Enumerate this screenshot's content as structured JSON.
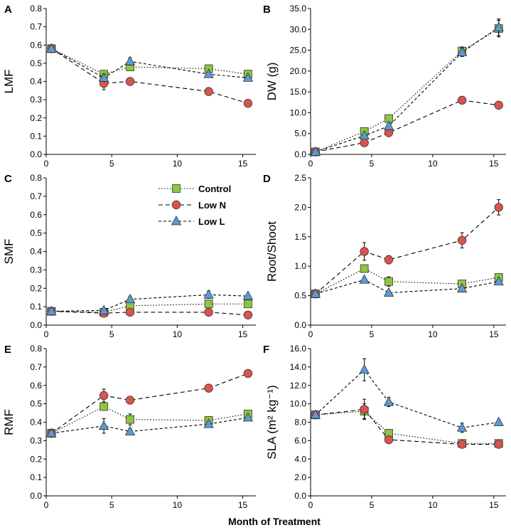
{
  "figure": {
    "xlabel": "Month of Treatment",
    "x_ticks": [
      "0",
      "5",
      "10",
      "15"
    ],
    "legend": [
      {
        "label": "Control",
        "series": "control"
      },
      {
        "label": "Low N",
        "series": "lown"
      },
      {
        "label": "Low L",
        "series": "lowl"
      }
    ]
  },
  "colors": {
    "control": "#8DC63F",
    "lown": "#D9534F",
    "lowl": "#5B9BD5",
    "outline": "#333333"
  },
  "chart_data": [
    {
      "type": "line",
      "panel": "A",
      "ylabel": "LMF",
      "x": [
        0.4,
        4.4,
        6.4,
        12.4,
        15.4
      ],
      "xlim": [
        0,
        16
      ],
      "ylim": [
        0,
        0.8
      ],
      "yticks": [
        "0.0",
        "0.1",
        "0.2",
        "0.3",
        "0.4",
        "0.5",
        "0.6",
        "0.7",
        "0.8"
      ],
      "series": [
        {
          "name": "Control",
          "key": "control",
          "values": [
            0.58,
            0.44,
            0.48,
            0.47,
            0.44
          ],
          "err": [
            0.01,
            0.01,
            0.02,
            0.01,
            0.01
          ]
        },
        {
          "name": "Low N",
          "key": "lown",
          "values": [
            0.58,
            0.39,
            0.4,
            0.345,
            0.28
          ],
          "err": [
            0.02,
            0.035,
            0.01,
            0.02,
            0.01
          ]
        },
        {
          "name": "Low L",
          "key": "lowl",
          "values": [
            0.58,
            0.42,
            0.51,
            0.44,
            0.42
          ],
          "err": [
            0.01,
            0.02,
            0.02,
            0.01,
            0.01
          ]
        }
      ]
    },
    {
      "type": "line",
      "panel": "B",
      "ylabel": "DW (g)",
      "x": [
        0.4,
        4.4,
        6.4,
        12.4,
        15.4
      ],
      "xlim": [
        0,
        16
      ],
      "ylim": [
        0,
        35
      ],
      "yticks": [
        "0.0",
        "5.0",
        "10.0",
        "15.0",
        "20.0",
        "25.0",
        "30.0",
        "35.0"
      ],
      "series": [
        {
          "name": "Control",
          "key": "control",
          "values": [
            0.6,
            5.5,
            8.6,
            24.8,
            30.2
          ],
          "err": [
            0.1,
            0.5,
            0.5,
            1.0,
            2.0
          ]
        },
        {
          "name": "Low N",
          "key": "lown",
          "values": [
            0.6,
            2.8,
            5.2,
            13.0,
            11.8
          ],
          "err": [
            0.1,
            0.3,
            0.4,
            0.5,
            0.5
          ]
        },
        {
          "name": "Low L",
          "key": "lowl",
          "values": [
            0.6,
            4.5,
            6.8,
            24.5,
            30.5
          ],
          "err": [
            0.1,
            0.4,
            0.5,
            1.0,
            2.0
          ]
        }
      ]
    },
    {
      "type": "line",
      "panel": "C",
      "ylabel": "SMF",
      "x": [
        0.4,
        4.4,
        6.4,
        12.4,
        15.4
      ],
      "xlim": [
        0,
        16
      ],
      "ylim": [
        0,
        0.8
      ],
      "yticks": [
        "0.0",
        "0.1",
        "0.2",
        "0.3",
        "0.4",
        "0.5",
        "0.6",
        "0.7",
        "0.8"
      ],
      "series": [
        {
          "name": "Control",
          "key": "control",
          "values": [
            0.075,
            0.07,
            0.105,
            0.115,
            0.115
          ],
          "err": [
            0.005,
            0.005,
            0.01,
            0.01,
            0.01
          ]
        },
        {
          "name": "Low N",
          "key": "lown",
          "values": [
            0.075,
            0.065,
            0.07,
            0.07,
            0.055
          ],
          "err": [
            0.005,
            0.005,
            0.005,
            0.005,
            0.005
          ]
        },
        {
          "name": "Low L",
          "key": "lowl",
          "values": [
            0.075,
            0.08,
            0.14,
            0.165,
            0.158
          ],
          "err": [
            0.005,
            0.01,
            0.015,
            0.02,
            0.01
          ]
        }
      ]
    },
    {
      "type": "line",
      "panel": "D",
      "ylabel": "Root/Shoot",
      "x": [
        0.4,
        4.4,
        6.4,
        12.4,
        15.4
      ],
      "xlim": [
        0,
        16
      ],
      "ylim": [
        0,
        2.5
      ],
      "yticks": [
        "0.0",
        "0.5",
        "1.0",
        "1.5",
        "2.0",
        "2.5"
      ],
      "series": [
        {
          "name": "Control",
          "key": "control",
          "values": [
            0.53,
            0.96,
            0.74,
            0.7,
            0.81
          ],
          "err": [
            0.03,
            0.04,
            0.08,
            0.05,
            0.05
          ]
        },
        {
          "name": "Low N",
          "key": "lown",
          "values": [
            0.53,
            1.25,
            1.11,
            1.44,
            2.0
          ],
          "err": [
            0.03,
            0.15,
            0.07,
            0.13,
            0.13
          ]
        },
        {
          "name": "Low L",
          "key": "lowl",
          "values": [
            0.53,
            0.77,
            0.55,
            0.62,
            0.74
          ],
          "err": [
            0.03,
            0.03,
            0.03,
            0.04,
            0.04
          ]
        }
      ]
    },
    {
      "type": "line",
      "panel": "E",
      "ylabel": "RMF",
      "x": [
        0.4,
        4.4,
        6.4,
        12.4,
        15.4
      ],
      "xlim": [
        0,
        16
      ],
      "ylim": [
        0,
        0.8
      ],
      "yticks": [
        "0.0",
        "0.1",
        "0.2",
        "0.3",
        "0.4",
        "0.5",
        "0.6",
        "0.7",
        "0.8"
      ],
      "series": [
        {
          "name": "Control",
          "key": "control",
          "values": [
            0.34,
            0.485,
            0.415,
            0.41,
            0.445
          ],
          "err": [
            0.02,
            0.015,
            0.03,
            0.015,
            0.01
          ]
        },
        {
          "name": "Low N",
          "key": "lown",
          "values": [
            0.34,
            0.545,
            0.52,
            0.585,
            0.665
          ],
          "err": [
            0.02,
            0.035,
            0.01,
            0.02,
            0.01
          ]
        },
        {
          "name": "Low L",
          "key": "lowl",
          "values": [
            0.34,
            0.38,
            0.35,
            0.39,
            0.425
          ],
          "err": [
            0.02,
            0.04,
            0.015,
            0.015,
            0.01
          ]
        }
      ]
    },
    {
      "type": "line",
      "panel": "F",
      "ylabel": "SLA (m² kg⁻¹)",
      "x": [
        0.4,
        4.4,
        6.4,
        12.4,
        15.4
      ],
      "xlim": [
        0,
        16
      ],
      "ylim": [
        0,
        16
      ],
      "yticks": [
        "0.0",
        "2.0",
        "4.0",
        "6.0",
        "8.0",
        "10.0",
        "12.0",
        "14.0",
        "16.0"
      ],
      "series": [
        {
          "name": "Control",
          "key": "control",
          "values": [
            8.8,
            9.2,
            6.8,
            5.7,
            5.7
          ],
          "err": [
            0.2,
            0.8,
            0.3,
            0.2,
            0.2
          ]
        },
        {
          "name": "Low N",
          "key": "lown",
          "values": [
            8.8,
            9.4,
            6.1,
            5.6,
            5.6
          ],
          "err": [
            0.2,
            1.1,
            0.2,
            0.2,
            0.2
          ]
        },
        {
          "name": "Low L",
          "key": "lowl",
          "values": [
            8.8,
            13.7,
            10.2,
            7.4,
            8.0
          ],
          "err": [
            0.2,
            1.2,
            0.5,
            0.5,
            0.2
          ]
        }
      ]
    }
  ]
}
